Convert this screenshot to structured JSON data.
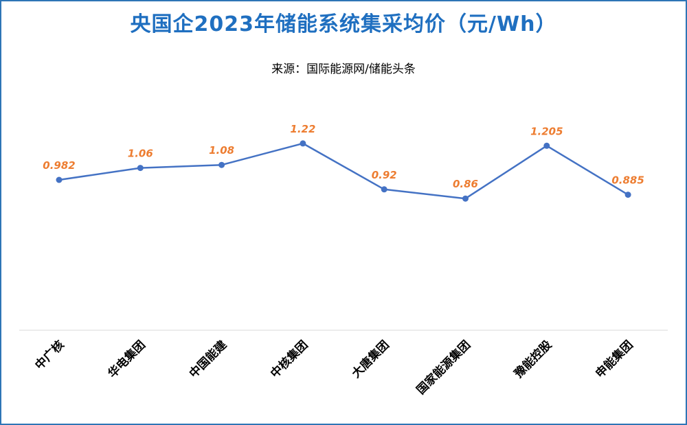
{
  "title": "央国企2023年储能系统集采均价（元/Wh）",
  "subtitle": "来源：国际能源网/储能头条",
  "colors": {
    "title": "#1F6FC0",
    "line": "#4472C4",
    "labels": "#ED7D31",
    "border": "#2E75B6",
    "axis": "#D9D9D9"
  },
  "chart_data": {
    "type": "line",
    "categories": [
      "中广核",
      "华电集团",
      "中国能建",
      "中核集团",
      "大唐集团",
      "国家能源集团",
      "豫能控股",
      "申能集团"
    ],
    "series": [
      {
        "values": [
          0.982,
          1.06,
          1.08,
          1.22,
          0.92,
          0.86,
          1.205,
          0.885
        ]
      }
    ],
    "value_labels": [
      "0.982",
      "1.06",
      "1.08",
      "1.22",
      "0.92",
      "0.86",
      "1.205",
      "0.885"
    ],
    "ylim": [
      0,
      1.6
    ],
    "grid": false,
    "legend": "none"
  }
}
